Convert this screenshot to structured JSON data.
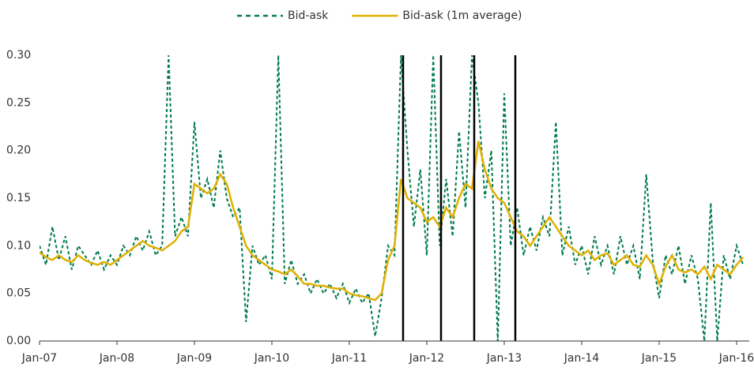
{
  "chart_data": {
    "type": "line",
    "categories": [
      "Jan-07",
      null,
      null,
      null,
      null,
      null,
      null,
      null,
      null,
      null,
      null,
      null,
      "Jan-08",
      null,
      null,
      null,
      null,
      null,
      null,
      null,
      null,
      null,
      null,
      null,
      "Jan-09",
      null,
      null,
      null,
      null,
      null,
      null,
      null,
      null,
      null,
      null,
      null,
      "Jan-10",
      null,
      null,
      null,
      null,
      null,
      null,
      null,
      null,
      null,
      null,
      null,
      "Jan-11",
      null,
      null,
      null,
      null,
      null,
      null,
      null,
      null,
      null,
      null,
      null,
      "Jan-12",
      null,
      null,
      null,
      null,
      null,
      null,
      null,
      null,
      null,
      null,
      null,
      "Jan-13",
      null,
      null,
      null,
      null,
      null,
      null,
      null,
      null,
      null,
      null,
      null,
      "Jan-14",
      null,
      null,
      null,
      null,
      null,
      null,
      null,
      null,
      null,
      null,
      null,
      "Jan-15",
      null,
      null,
      null,
      null,
      null,
      null,
      null,
      null,
      null,
      null,
      null,
      "Jan-16",
      null
    ],
    "series": [
      {
        "name": "Bid-ask",
        "color": "#007a4d",
        "dashed": true,
        "values": [
          0.1,
          0.08,
          0.12,
          0.085,
          0.11,
          0.075,
          0.1,
          0.09,
          0.08,
          0.095,
          0.075,
          0.09,
          0.08,
          0.1,
          0.09,
          0.11,
          0.095,
          0.115,
          0.09,
          0.1,
          0.3,
          0.11,
          0.13,
          0.11,
          0.23,
          0.15,
          0.17,
          0.14,
          0.2,
          0.15,
          0.13,
          0.14,
          0.02,
          0.1,
          0.08,
          0.09,
          0.065,
          0.3,
          0.06,
          0.085,
          0.06,
          0.07,
          0.05,
          0.065,
          0.05,
          0.06,
          0.045,
          0.06,
          0.04,
          0.055,
          0.04,
          0.05,
          0.005,
          0.045,
          0.1,
          0.09,
          0.3,
          0.2,
          0.12,
          0.18,
          0.09,
          0.3,
          0.1,
          0.17,
          0.11,
          0.22,
          0.14,
          0.3,
          0.25,
          0.15,
          0.2,
          0.0,
          0.26,
          0.1,
          0.14,
          0.09,
          0.12,
          0.095,
          0.13,
          0.11,
          0.23,
          0.09,
          0.12,
          0.08,
          0.1,
          0.07,
          0.11,
          0.08,
          0.1,
          0.07,
          0.11,
          0.08,
          0.1,
          0.065,
          0.175,
          0.085,
          0.045,
          0.09,
          0.07,
          0.1,
          0.06,
          0.09,
          0.065,
          0.0,
          0.145,
          0.0,
          0.09,
          0.065,
          0.1,
          0.08
        ]
      },
      {
        "name": "Bid-ask (1m average)",
        "color": "#e0b000",
        "dashed": false,
        "values": [
          0.093,
          0.088,
          0.085,
          0.09,
          0.085,
          0.083,
          0.09,
          0.085,
          0.082,
          0.08,
          0.083,
          0.08,
          0.085,
          0.09,
          0.095,
          0.1,
          0.105,
          0.1,
          0.098,
          0.095,
          0.1,
          0.105,
          0.115,
          0.12,
          0.165,
          0.16,
          0.155,
          0.16,
          0.175,
          0.165,
          0.14,
          0.12,
          0.1,
          0.09,
          0.085,
          0.08,
          0.075,
          0.073,
          0.07,
          0.075,
          0.068,
          0.06,
          0.06,
          0.058,
          0.058,
          0.056,
          0.055,
          0.055,
          0.05,
          0.048,
          0.047,
          0.045,
          0.043,
          0.05,
          0.085,
          0.1,
          0.17,
          0.15,
          0.145,
          0.14,
          0.125,
          0.13,
          0.12,
          0.14,
          0.13,
          0.15,
          0.165,
          0.16,
          0.21,
          0.18,
          0.16,
          0.15,
          0.145,
          0.13,
          0.115,
          0.11,
          0.1,
          0.11,
          0.12,
          0.13,
          0.12,
          0.11,
          0.1,
          0.095,
          0.09,
          0.095,
          0.085,
          0.09,
          0.092,
          0.08,
          0.085,
          0.09,
          0.08,
          0.078,
          0.09,
          0.08,
          0.06,
          0.078,
          0.09,
          0.075,
          0.072,
          0.075,
          0.07,
          0.078,
          0.065,
          0.08,
          0.075,
          0.07,
          0.08,
          0.088
        ]
      }
    ],
    "ylim": [
      0,
      0.3
    ],
    "yticks": [
      {
        "value": 0,
        "label": "0.00"
      },
      0.05,
      {
        "value": 0.1,
        "label": "0.10"
      },
      0.15,
      {
        "value": 0.2,
        "label": "0.20"
      },
      0.25,
      {
        "value": 0.3,
        "label": "0.30"
      }
    ],
    "legend": "top"
  }
}
